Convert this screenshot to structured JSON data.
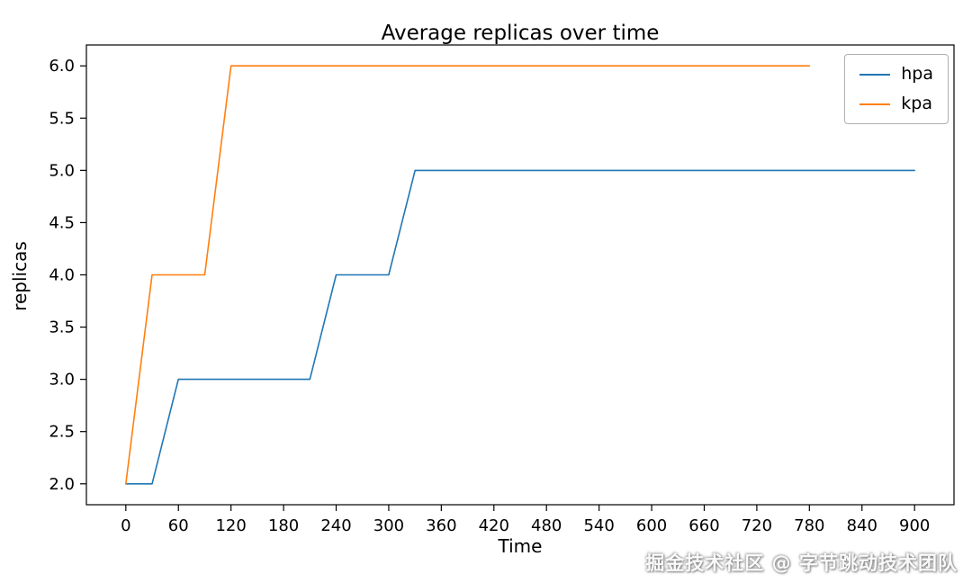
{
  "title": "Average replicas over time",
  "watermark": "掘金技术社区 @ 字节跳动技术团队",
  "chart_data": {
    "type": "line",
    "title": "Average replicas over time",
    "xlabel": "Time",
    "ylabel": "replicas",
    "xlim": [
      -45,
      945
    ],
    "ylim": [
      1.8,
      6.2
    ],
    "grid": false,
    "legend_position": "upper right",
    "xticks": [
      0,
      60,
      120,
      180,
      240,
      300,
      360,
      420,
      480,
      540,
      600,
      660,
      720,
      780,
      840,
      900
    ],
    "xtick_labels": [
      "0",
      "60",
      "120",
      "180",
      "240",
      "300",
      "360",
      "420",
      "480",
      "540",
      "600",
      "660",
      "720",
      "780",
      "840",
      "900"
    ],
    "yticks": [
      2.0,
      2.5,
      3.0,
      3.5,
      4.0,
      4.5,
      5.0,
      5.5,
      6.0
    ],
    "ytick_labels": [
      "2.0",
      "2.5",
      "3.0",
      "3.5",
      "4.0",
      "4.5",
      "5.0",
      "5.5",
      "6.0"
    ],
    "series": [
      {
        "name": "hpa",
        "color": "#1f77b4",
        "points": [
          [
            0,
            2
          ],
          [
            30,
            2
          ],
          [
            60,
            3
          ],
          [
            210,
            3
          ],
          [
            240,
            4
          ],
          [
            300,
            4
          ],
          [
            330,
            5
          ],
          [
            900,
            5
          ]
        ]
      },
      {
        "name": "kpa",
        "color": "#ff7f0e",
        "points": [
          [
            0,
            2
          ],
          [
            30,
            4
          ],
          [
            90,
            4
          ],
          [
            120,
            6
          ],
          [
            780,
            6
          ]
        ]
      }
    ]
  }
}
